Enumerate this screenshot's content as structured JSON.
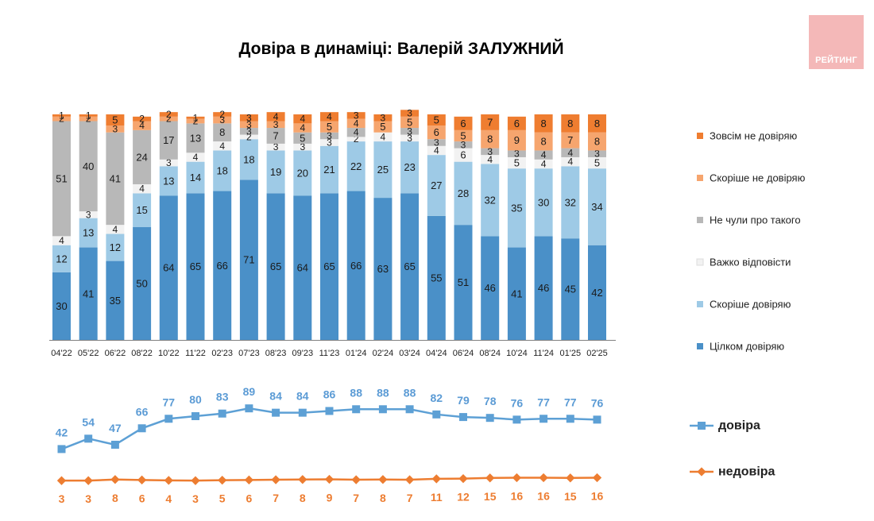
{
  "title": "Довіра в динаміці: Валерій ЗАЛУЖНИЙ",
  "logo": {
    "text": "РЕЙТИНГ",
    "color": "#f4b8b8"
  },
  "chart_data": [
    {
      "type": "bar",
      "stacked": true,
      "categories": [
        "04'22",
        "05'22",
        "06'22",
        "08'22",
        "10'22",
        "11'22",
        "02'23",
        "07'23",
        "08'23",
        "09'23",
        "11'23",
        "01'24",
        "02'24",
        "03'24",
        "04'24",
        "06'24",
        "08'24",
        "10'24",
        "11'24",
        "01'25",
        "02'25"
      ],
      "series": [
        {
          "name": "Цілком довіряю",
          "color": "#4a90c8",
          "values": [
            30,
            41,
            35,
            50,
            64,
            65,
            66,
            71,
            65,
            64,
            65,
            66,
            63,
            65,
            55,
            51,
            46,
            41,
            46,
            45,
            42
          ]
        },
        {
          "name": "Скоріше довіряю",
          "color": "#9ecae6",
          "values": [
            12,
            13,
            12,
            15,
            13,
            14,
            18,
            18,
            19,
            20,
            21,
            22,
            25,
            23,
            27,
            28,
            32,
            35,
            30,
            32,
            34
          ]
        },
        {
          "name": "Важко відповісти",
          "color": "#f2f2f2",
          "values": [
            4,
            3,
            4,
            4,
            3,
            4,
            4,
            2,
            3,
            3,
            3,
            2,
            4,
            3,
            4,
            6,
            4,
            5,
            4,
            4,
            5
          ]
        },
        {
          "name": "Не чули про такого",
          "color": "#b8b8b8",
          "values": [
            51,
            40,
            41,
            24,
            17,
            13,
            8,
            3,
            7,
            5,
            3,
            4,
            0,
            3,
            3,
            3,
            3,
            3,
            4,
            4,
            3
          ]
        },
        {
          "name": "Скоріше не довіряю",
          "color": "#f6a56e",
          "values": [
            2,
            2,
            3,
            4,
            2,
            2,
            3,
            3,
            3,
            4,
            5,
            4,
            5,
            5,
            6,
            5,
            8,
            9,
            8,
            7,
            8
          ]
        },
        {
          "name": "Зовсім не довіряю",
          "color": "#ef7d30",
          "values": [
            1,
            1,
            5,
            2,
            2,
            1,
            2,
            3,
            4,
            4,
            4,
            3,
            3,
            3,
            5,
            6,
            7,
            6,
            8,
            8,
            8
          ]
        }
      ],
      "legend_position": "right",
      "ylim": [
        0,
        100
      ],
      "grid": false
    },
    {
      "type": "line",
      "categories": [
        "04'22",
        "05'22",
        "06'22",
        "08'22",
        "10'22",
        "11'22",
        "02'23",
        "07'23",
        "08'23",
        "09'23",
        "11'23",
        "01'24",
        "02'24",
        "03'24",
        "04'24",
        "06'24",
        "08'24",
        "10'24",
        "11'24",
        "01'25",
        "02'25"
      ],
      "series": [
        {
          "name": "довіра",
          "color": "#5da0d5",
          "marker": "square",
          "values": [
            42,
            54,
            47,
            66,
            77,
            80,
            83,
            89,
            84,
            84,
            86,
            88,
            88,
            88,
            82,
            79,
            78,
            76,
            77,
            77,
            76
          ]
        },
        {
          "name": "недовіра",
          "color": "#ed7d31",
          "marker": "diamond",
          "values": [
            3,
            3,
            8,
            6,
            4,
            3,
            5,
            6,
            7,
            8,
            9,
            7,
            8,
            7,
            11,
            12,
            15,
            16,
            16,
            15,
            16
          ]
        }
      ],
      "legend_position": "right",
      "grid": false
    }
  ]
}
